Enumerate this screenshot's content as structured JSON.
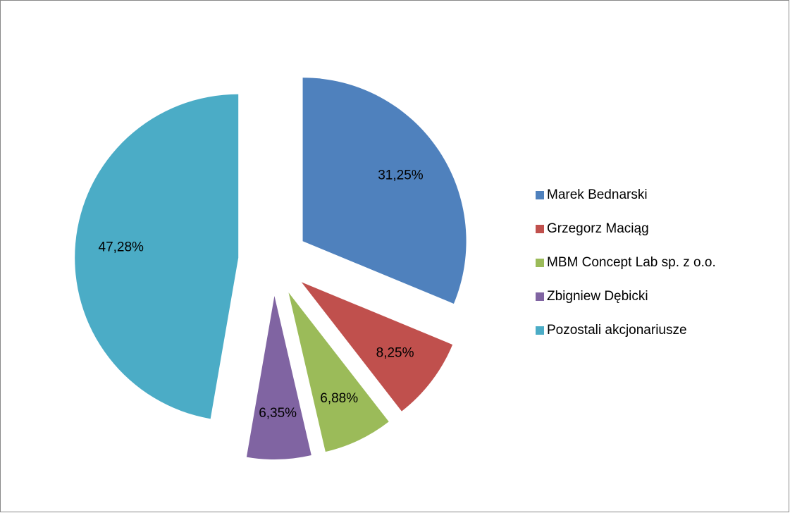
{
  "chart_data": {
    "type": "pie",
    "categories": [
      "Marek Bednarski",
      "Grzegorz Maciąg",
      "MBM Concept Lab sp. z o.o.",
      "Zbigniew Dębicki",
      "Pozostali akcjonariusze"
    ],
    "values": [
      31.25,
      8.25,
      6.88,
      6.35,
      47.28
    ],
    "value_labels": [
      "31,25%",
      "8,25%",
      "6,88%",
      "6,35%",
      "47,28%"
    ],
    "colors": [
      "#4f81bd",
      "#c0504d",
      "#9bbb59",
      "#8064a2",
      "#4bacc6"
    ],
    "legend": "right"
  }
}
